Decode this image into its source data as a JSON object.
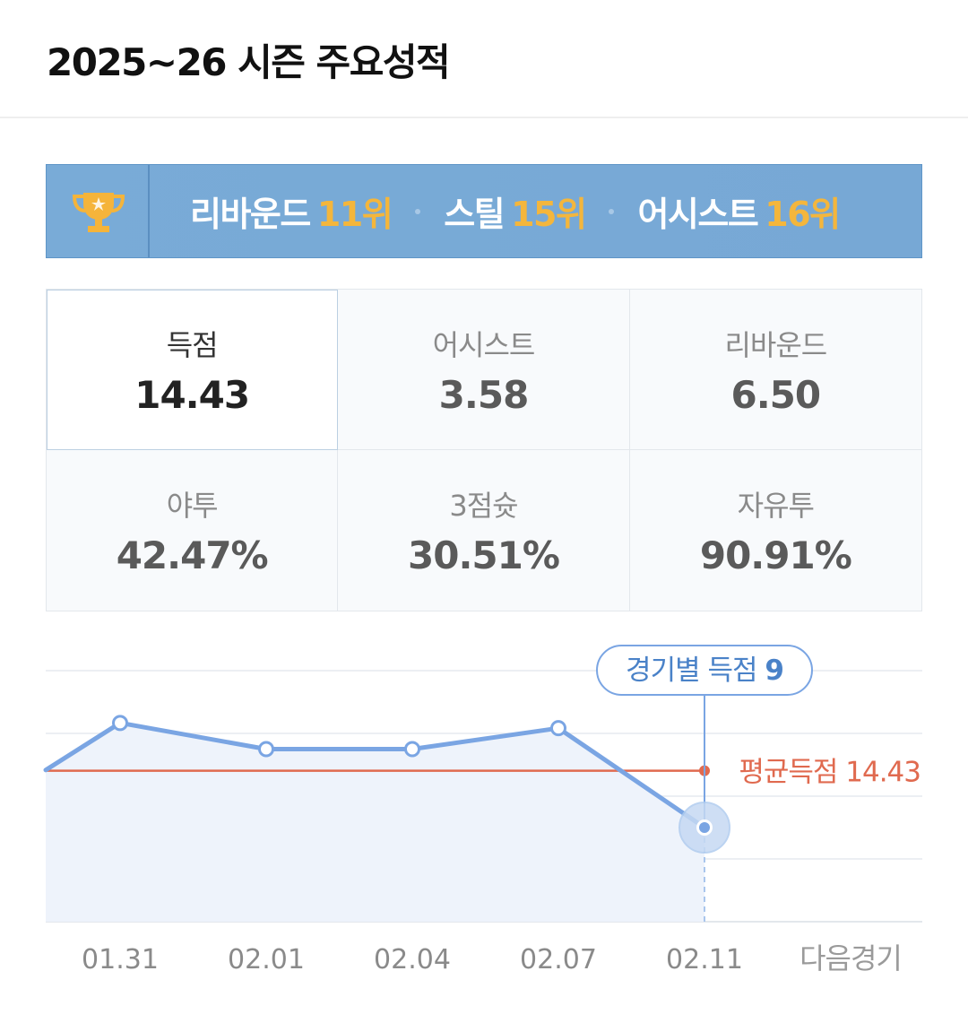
{
  "header": {
    "title": "2025~26 시즌 주요성적"
  },
  "rank_banner": {
    "icon": "trophy-icon",
    "items": [
      {
        "label": "리바운드",
        "rank": "11위"
      },
      {
        "label": "스틸",
        "rank": "15위"
      },
      {
        "label": "어시스트",
        "rank": "16위"
      }
    ]
  },
  "stats": [
    {
      "label": "득점",
      "value": "14.43",
      "active": true
    },
    {
      "label": "어시스트",
      "value": "3.58",
      "active": false
    },
    {
      "label": "리바운드",
      "value": "6.50",
      "active": false
    },
    {
      "label": "야투",
      "value": "42.47%",
      "active": false
    },
    {
      "label": "3점슛",
      "value": "30.51%",
      "active": false
    },
    {
      "label": "자유투",
      "value": "90.91%",
      "active": false
    }
  ],
  "chart_data": {
    "type": "line",
    "categories": [
      "01.31",
      "02.01",
      "02.04",
      "02.07",
      "02.11"
    ],
    "next_label": "다음경기",
    "series": [
      {
        "values": [
          19,
          16.5,
          16.5,
          18.5,
          9
        ]
      }
    ],
    "entry_value": 14.5,
    "average": {
      "label": "평균득점",
      "value": 14.43
    },
    "tooltip": {
      "label": "경기별 득점",
      "value": "9"
    },
    "ylim": [
      0,
      24
    ],
    "grid": true,
    "colors": {
      "line": "#7aa5e3",
      "area": "#eef3fb",
      "average": "#e06a4f",
      "tooltip_text": "#4a82c8",
      "tick": "#8a8a8a"
    }
  }
}
